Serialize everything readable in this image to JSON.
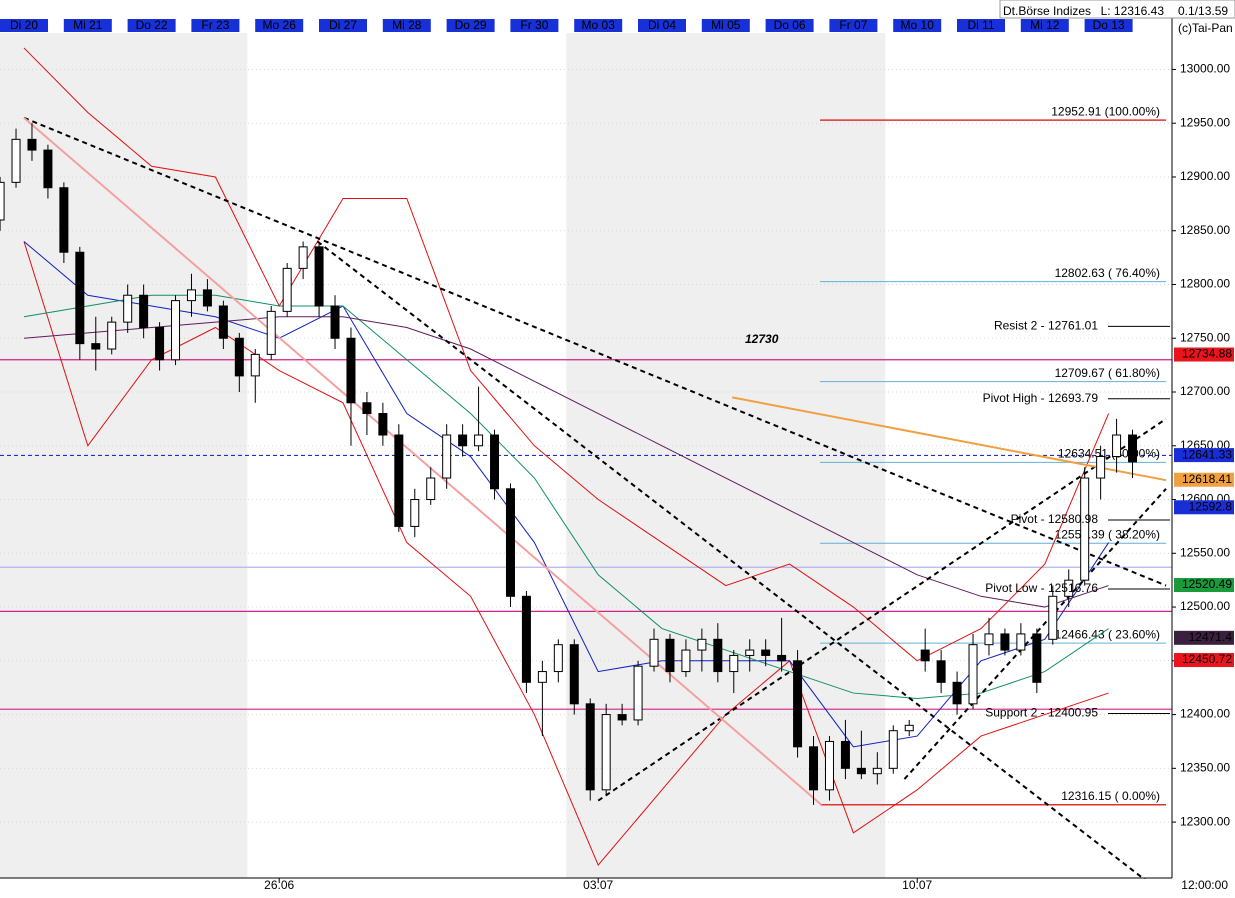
{
  "chart_data": {
    "type": "candlestick",
    "categories": [
      "Di 20",
      "Mi 21",
      "Do 22",
      "Fr 23",
      "Mo 26",
      "Di 27",
      "Mi 28",
      "Do 29",
      "Fr 30",
      "Mo 03",
      "Di 04",
      "Mi 05",
      "Do 06",
      "Fr 07",
      "Mo 10",
      "Di 11",
      "Mi 12",
      "Do 13"
    ],
    "ohlc": [
      [
        12860,
        12900,
        12850,
        12895
      ],
      [
        12895,
        12945,
        12890,
        12935
      ],
      [
        12935,
        12950,
        12915,
        12925
      ],
      [
        12925,
        12930,
        12880,
        12890
      ],
      [
        12890,
        12895,
        12820,
        12830
      ],
      [
        12830,
        12835,
        12730,
        12745
      ],
      [
        12745,
        12770,
        12720,
        12740
      ],
      [
        12740,
        12770,
        12735,
        12765
      ],
      [
        12765,
        12800,
        12755,
        12790
      ],
      [
        12790,
        12800,
        12750,
        12760
      ],
      [
        12760,
        12765,
        12720,
        12730
      ],
      [
        12730,
        12790,
        12725,
        12785
      ],
      [
        12785,
        12810,
        12770,
        12795
      ],
      [
        12795,
        12805,
        12775,
        12780
      ],
      [
        12780,
        12785,
        12740,
        12750
      ],
      [
        12750,
        12755,
        12700,
        12715
      ],
      [
        12715,
        12740,
        12690,
        12735
      ],
      [
        12735,
        12780,
        12730,
        12775
      ],
      [
        12775,
        12820,
        12770,
        12815
      ],
      [
        12815,
        12840,
        12805,
        12835
      ],
      [
        12835,
        12840,
        12770,
        12780
      ],
      [
        12780,
        12790,
        12740,
        12750
      ],
      [
        12750,
        12760,
        12650,
        12690
      ],
      [
        12690,
        12700,
        12660,
        12680
      ],
      [
        12680,
        12690,
        12650,
        12660
      ],
      [
        12660,
        12670,
        12570,
        12575
      ],
      [
        12575,
        12610,
        12565,
        12600
      ],
      [
        12600,
        12630,
        12595,
        12620
      ],
      [
        12620,
        12670,
        12610,
        12660
      ],
      [
        12660,
        12670,
        12640,
        12650
      ],
      [
        12650,
        12705,
        12645,
        12660
      ],
      [
        12660,
        12665,
        12600,
        12610
      ],
      [
        12610,
        12615,
        12500,
        12510
      ],
      [
        12510,
        12515,
        12420,
        12430
      ],
      [
        12430,
        12450,
        12380,
        12440
      ],
      [
        12440,
        12470,
        12430,
        12465
      ],
      [
        12465,
        12470,
        12400,
        12410
      ],
      [
        12410,
        12415,
        12320,
        12330
      ],
      [
        12330,
        12410,
        12325,
        12400
      ],
      [
        12400,
        12410,
        12390,
        12395
      ],
      [
        12395,
        12450,
        12390,
        12445
      ],
      [
        12445,
        12480,
        12440,
        12470
      ],
      [
        12470,
        12475,
        12430,
        12440
      ],
      [
        12440,
        12470,
        12435,
        12460
      ],
      [
        12460,
        12480,
        12440,
        12470
      ],
      [
        12470,
        12485,
        12430,
        12440
      ],
      [
        12440,
        12460,
        12420,
        12455
      ],
      [
        12455,
        12470,
        12440,
        12460
      ],
      [
        12460,
        12470,
        12445,
        12455
      ],
      [
        12455,
        12490,
        12440,
        12450
      ],
      [
        12450,
        12460,
        12360,
        12370
      ],
      [
        12370,
        12380,
        12316,
        12330
      ],
      [
        12330,
        12380,
        12320,
        12375
      ],
      [
        12375,
        12395,
        12340,
        12350
      ],
      [
        12350,
        12385,
        12340,
        12345
      ],
      [
        12345,
        12365,
        12335,
        12350
      ],
      [
        12350,
        12390,
        12345,
        12385
      ],
      [
        12385,
        12395,
        12380,
        12390
      ],
      [
        12460,
        12480,
        12440,
        12450
      ],
      [
        12450,
        12460,
        12420,
        12430
      ],
      [
        12430,
        12440,
        12400,
        12410
      ],
      [
        12410,
        12475,
        12405,
        12465
      ],
      [
        12465,
        12490,
        12455,
        12475
      ],
      [
        12475,
        12480,
        12455,
        12460
      ],
      [
        12460,
        12485,
        12455,
        12475
      ],
      [
        12475,
        12480,
        12420,
        12430
      ],
      [
        12470,
        12520,
        12465,
        12510
      ],
      [
        12510,
        12535,
        12500,
        12525
      ],
      [
        12525,
        12630,
        12520,
        12620
      ],
      [
        12620,
        12650,
        12600,
        12640
      ],
      [
        12640,
        12675,
        12625,
        12660
      ],
      [
        12660,
        12665,
        12620,
        12635
      ]
    ],
    "overlays": [
      {
        "color": "#e01010",
        "values": [
          13020,
          12960,
          12910,
          12900,
          12780,
          12880,
          12880,
          12720,
          12650,
          12600,
          12560,
          12520,
          12540,
          12500,
          12450,
          12480,
          12540,
          12680
        ]
      },
      {
        "color": "#e01010",
        "values": [
          12840,
          12650,
          12730,
          12760,
          12720,
          12690,
          12560,
          12510,
          12400,
          12260,
          12330,
          12400,
          12450,
          12290,
          12330,
          12380,
          12400,
          12420
        ]
      },
      {
        "color": "#1020c0",
        "values": [
          12840,
          12790,
          12780,
          12770,
          12750,
          12780,
          12680,
          12640,
          12560,
          12440,
          12450,
          12450,
          12450,
          12370,
          12380,
          12450,
          12470,
          12560
        ]
      },
      {
        "color": "#109060",
        "values": [
          12770,
          12780,
          12790,
          12790,
          12780,
          12780,
          12730,
          12680,
          12620,
          12530,
          12480,
          12460,
          12440,
          12420,
          12415,
          12420,
          12440,
          12480
        ]
      },
      {
        "color": "#601a60",
        "values": [
          12750,
          12755,
          12760,
          12765,
          12770,
          12770,
          12760,
          12740,
          12710,
          12680,
          12650,
          12620,
          12590,
          12560,
          12530,
          12510,
          12500,
          12520
        ]
      }
    ],
    "trendlines": [
      {
        "color": "#000000",
        "dashed": true,
        "x": [
          0,
          17.9
        ],
        "y": [
          12955,
          12520
        ]
      },
      {
        "color": "#000000",
        "dashed": true,
        "x": [
          4.6,
          17.6
        ],
        "y": [
          12840,
          12245
        ]
      },
      {
        "color": "#000000",
        "dashed": true,
        "x": [
          9.0,
          17.9
        ],
        "y": [
          12320,
          12675
        ]
      },
      {
        "color": "#000000",
        "dashed": true,
        "x": [
          13.8,
          17.9
        ],
        "y": [
          12340,
          12610
        ]
      },
      {
        "color": "#f4a0a0",
        "dashed": false,
        "x": [
          0,
          12.5
        ],
        "y": [
          12955,
          12316
        ]
      },
      {
        "color": "#f0a040",
        "dashed": false,
        "x": [
          11.1,
          17.9
        ],
        "y": [
          12695,
          12618
        ]
      }
    ],
    "hlines": [
      {
        "value": 12730,
        "color": "#d0208a",
        "dashed": false
      },
      {
        "value": 12496,
        "color": "#d0208a",
        "dashed": false
      },
      {
        "value": 12405,
        "color": "#d0208a",
        "dashed": false
      },
      {
        "value": 12537,
        "color": "#b0b4ee",
        "dashed": false
      },
      {
        "value": 12641,
        "color": "#2030c0",
        "dashed": true
      }
    ],
    "fib_levels": [
      {
        "value": 12952.91,
        "label": "12952.91 (100.00%)",
        "color": "#e03030"
      },
      {
        "value": 12802.63,
        "label": "12802.63 ( 76.40%)",
        "color": "#60b0d8"
      },
      {
        "value": 12709.67,
        "label": "12709.67 ( 61.80%)",
        "color": "#60b0d8"
      },
      {
        "value": 12634.51,
        "label": "12634.51 (50.00%)",
        "color": "#60b0d8"
      },
      {
        "value": 12559.39,
        "label": "12559.39 ( 38.20%)",
        "color": "#60b0d8"
      },
      {
        "value": 12466.43,
        "label": "12466.43 ( 23.60%)",
        "color": "#60b0d8"
      },
      {
        "value": 12316.15,
        "label": "12316.15 ( 0.00%)",
        "color": "#e03030"
      }
    ],
    "pivots": [
      {
        "value": 12761.01,
        "label": "Resist 2 - 12761.01"
      },
      {
        "value": 12693.79,
        "label": "Pivot High - 12693.79"
      },
      {
        "value": 12580.98,
        "label": "Pivot - 12580.98"
      },
      {
        "value": 12516.76,
        "label": "Pivot Low - 12516.76"
      },
      {
        "value": 12400.95,
        "label": "Support 2 - 12400.95"
      }
    ],
    "price_tags": [
      {
        "value": 12734.88,
        "color": "#e8141e"
      },
      {
        "value": 12641.33,
        "color": "#1a2ed8"
      },
      {
        "value": 12618.41,
        "color": "#f0a040"
      },
      {
        "value": 12592.8,
        "color": "#1a2ed8"
      },
      {
        "value": 12520.49,
        "color": "#1a9a3a"
      },
      {
        "value": 12471.4,
        "color": "#3a1f3f"
      },
      {
        "value": 12450.72,
        "color": "#e8141e"
      }
    ],
    "annotation": "12730",
    "week_labels": [
      {
        "day": 4,
        "label": "26.06"
      },
      {
        "day": 9,
        "label": "03.07"
      },
      {
        "day": 14,
        "label": "10.07"
      }
    ],
    "time_label": "12:00:00",
    "info": [
      "Dt.Börse Indizes",
      "L: 12316.43",
      "0.1/13.59",
      "(c)Tai-Pan"
    ],
    "ylim": [
      12248,
      13046
    ],
    "yticks": [
      {
        "value": 12300,
        "label": "12300.00"
      },
      {
        "value": 12350,
        "label": "12350.00"
      },
      {
        "value": 12400,
        "label": "12400.00"
      },
      {
        "value": 12450,
        "label": "12450.00"
      },
      {
        "value": 12500,
        "label": "12500.00"
      },
      {
        "value": 12550,
        "label": "12550.00"
      },
      {
        "value": 12600,
        "label": "12600.00"
      },
      {
        "value": 12650,
        "label": "12650.00"
      },
      {
        "value": 12700,
        "label": "12700.00"
      },
      {
        "value": 12750,
        "label": "12750.00"
      },
      {
        "value": 12800,
        "label": "12800.00"
      },
      {
        "value": 12850,
        "label": "12850.00"
      },
      {
        "value": 12900,
        "label": "12900.00"
      },
      {
        "value": 12950,
        "label": "12950.00"
      },
      {
        "value": 13000,
        "label": "13000.00"
      }
    ],
    "grid": true
  }
}
